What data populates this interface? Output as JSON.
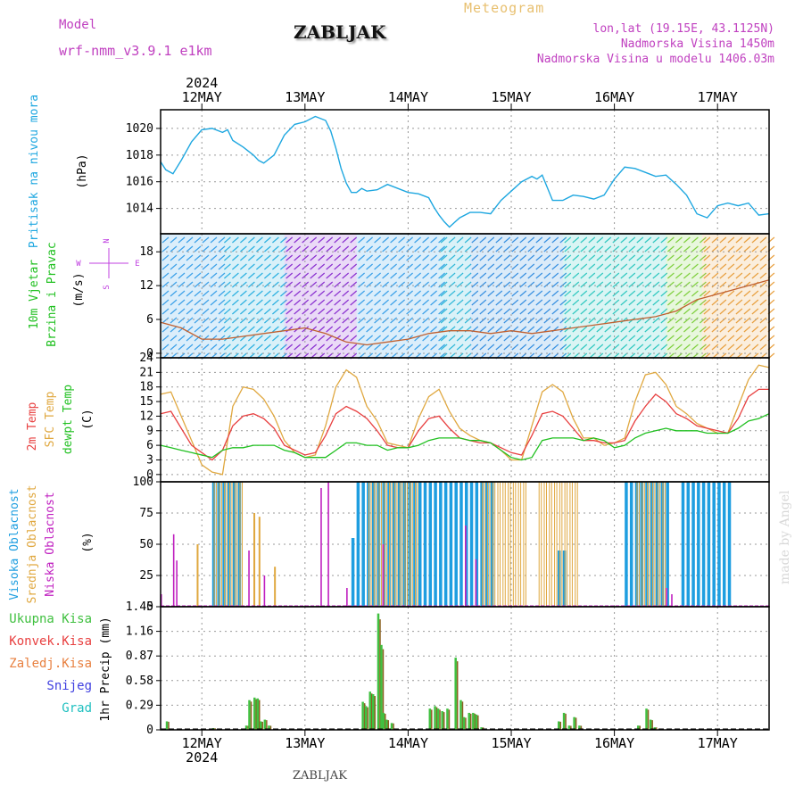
{
  "header": {
    "model_label": "Model",
    "model_name": "wrf-nmm_v3.9.1  e1km",
    "station": "ZABLJAK",
    "meteogram": "Meteogram",
    "lonlat": "lon,lat (19.15E, 43.1125N)",
    "elevation": "Nadmorska Visina 1450m",
    "model_elevation": "Nadmorska Visina u modelu 1406.03m",
    "year": "2024",
    "footer": "ZABLJAK",
    "watermark": "made by Angel"
  },
  "colors": {
    "pressure": "#1ea7e0",
    "temp2m": "#e84040",
    "sfc": "#e0a840",
    "dew": "#20c020",
    "high": "#1e9ee0",
    "mid": "#e0a840",
    "low": "#c020c0",
    "precip_total": "#40c040",
    "precip_conv": "#e84040",
    "wind_green": "#20c020",
    "compass": "#c040e0"
  },
  "chart_data": [
    {
      "type": "line",
      "panel": "pressure",
      "ylabel_outer": "Pritisak na nivou mora",
      "ylabel_inner": "(hPa)",
      "x_start_day": 11.6,
      "x_end_day": 17.5,
      "dates": [
        "12MAY",
        "13MAY",
        "14MAY",
        "15MAY",
        "16MAY",
        "17MAY"
      ],
      "ylim": [
        1012.1,
        1021.4
      ],
      "yticks": [
        1014,
        1016,
        1018,
        1020
      ],
      "x": [
        11.6,
        11.65,
        11.72,
        11.8,
        11.9,
        12.0,
        12.1,
        12.2,
        12.25,
        12.3,
        12.4,
        12.5,
        12.55,
        12.6,
        12.7,
        12.8,
        12.9,
        13.0,
        13.1,
        13.2,
        13.25,
        13.3,
        13.35,
        13.4,
        13.45,
        13.5,
        13.55,
        13.6,
        13.7,
        13.8,
        13.9,
        14.0,
        14.1,
        14.2,
        14.25,
        14.3,
        14.35,
        14.4,
        14.5,
        14.6,
        14.7,
        14.8,
        14.9,
        15.0,
        15.1,
        15.2,
        15.25,
        15.3,
        15.4,
        15.5,
        15.6,
        15.7,
        15.8,
        15.9,
        16.0,
        16.1,
        16.2,
        16.3,
        16.4,
        16.5,
        16.6,
        16.7,
        16.8,
        16.9,
        17.0,
        17.1,
        17.2,
        17.3,
        17.4,
        17.5
      ],
      "values": [
        1017.5,
        1016.9,
        1016.6,
        1017.6,
        1019.0,
        1019.9,
        1020.0,
        1019.7,
        1019.9,
        1019.1,
        1018.6,
        1018.0,
        1017.6,
        1017.4,
        1018.0,
        1019.5,
        1020.3,
        1020.5,
        1020.9,
        1020.6,
        1019.8,
        1018.5,
        1017.0,
        1015.9,
        1015.2,
        1015.2,
        1015.5,
        1015.3,
        1015.4,
        1015.8,
        1015.5,
        1015.2,
        1015.1,
        1014.8,
        1014.1,
        1013.5,
        1013.0,
        1012.6,
        1013.3,
        1013.7,
        1013.7,
        1013.6,
        1014.6,
        1015.3,
        1016.0,
        1016.4,
        1016.2,
        1016.5,
        1014.6,
        1014.6,
        1015.0,
        1014.9,
        1014.7,
        1015.0,
        1016.2,
        1017.1,
        1017.0,
        1016.7,
        1016.4,
        1016.5,
        1015.8,
        1015.0,
        1013.6,
        1013.3,
        1014.2,
        1014.4,
        1014.2,
        1014.4,
        1013.5,
        1013.6
      ]
    },
    {
      "type": "scatter",
      "panel": "wind",
      "ylabel_outer1": "10m Vjetar",
      "ylabel_outer2": "Brzina i Pravac",
      "ylabel_inner": "(m/s)",
      "ylim": [
        -0.8,
        21.2
      ],
      "yticks": [
        0,
        6,
        12,
        18
      ],
      "x": [
        11.6,
        11.8,
        12.0,
        12.2,
        12.4,
        12.6,
        12.8,
        13.0,
        13.2,
        13.4,
        13.6,
        13.8,
        14.0,
        14.2,
        14.4,
        14.6,
        14.8,
        15.0,
        15.2,
        15.4,
        15.6,
        15.8,
        16.0,
        16.2,
        16.4,
        16.6,
        16.8,
        17.0,
        17.2,
        17.4,
        17.5
      ],
      "speed": [
        5.5,
        4.5,
        2.5,
        2.5,
        3.0,
        3.5,
        4.0,
        4.5,
        3.5,
        2.0,
        1.5,
        2.0,
        2.5,
        3.5,
        4.0,
        4.0,
        3.5,
        4.0,
        3.5,
        4.0,
        4.5,
        5.0,
        5.5,
        6.0,
        6.5,
        7.5,
        9.5,
        10.5,
        11.5,
        12.5,
        13.0
      ],
      "compass": {
        "n": "N",
        "w": "W",
        "e": "E",
        "s": "S"
      }
    },
    {
      "type": "line",
      "panel": "temperature",
      "ylabel_temp2m": "2m Temp",
      "ylabel_sfc": "SFC Temp",
      "ylabel_dew": "dewpt Temp",
      "ylabel_inner": "(C)",
      "ylim": [
        -1.5,
        24
      ],
      "yticks": [
        0,
        3,
        6,
        9,
        12,
        15,
        18,
        21,
        24
      ],
      "x": [
        11.6,
        11.7,
        11.8,
        11.9,
        12.0,
        12.1,
        12.2,
        12.3,
        12.4,
        12.5,
        12.6,
        12.7,
        12.8,
        12.9,
        13.0,
        13.1,
        13.2,
        13.3,
        13.4,
        13.5,
        13.6,
        13.7,
        13.8,
        13.9,
        14.0,
        14.1,
        14.2,
        14.3,
        14.4,
        14.5,
        14.6,
        14.7,
        14.8,
        14.9,
        15.0,
        15.1,
        15.2,
        15.3,
        15.4,
        15.5,
        15.6,
        15.7,
        15.8,
        15.9,
        16.0,
        16.1,
        16.2,
        16.3,
        16.4,
        16.5,
        16.6,
        16.7,
        16.8,
        16.9,
        17.0,
        17.1,
        17.2,
        17.3,
        17.4,
        17.5
      ],
      "temp2m": [
        12.5,
        13.0,
        9.5,
        6.0,
        4.5,
        3.0,
        5.0,
        10.0,
        12.0,
        12.5,
        11.5,
        9.5,
        6.0,
        5.0,
        4.0,
        4.5,
        8.0,
        12.5,
        14.0,
        13.0,
        11.5,
        9.0,
        6.0,
        5.5,
        5.5,
        9.0,
        11.5,
        12.0,
        9.5,
        7.5,
        7.0,
        6.5,
        6.5,
        5.5,
        4.5,
        4.0,
        8.0,
        12.5,
        13.0,
        12.0,
        9.5,
        7.0,
        7.0,
        6.5,
        6.5,
        7.0,
        11.0,
        14.0,
        16.5,
        15.0,
        12.5,
        11.5,
        10.0,
        9.5,
        9.0,
        8.5,
        11.5,
        16.0,
        17.5,
        17.5
      ],
      "sfc_temp": [
        16.5,
        17.0,
        12.0,
        7.0,
        2.0,
        0.5,
        0.0,
        14.0,
        18.0,
        17.5,
        15.5,
        12.0,
        7.0,
        4.5,
        3.5,
        4.0,
        10.0,
        18.0,
        21.5,
        20.0,
        14.0,
        11.0,
        6.5,
        6.0,
        5.5,
        11.5,
        16.0,
        17.5,
        13.0,
        9.5,
        8.0,
        7.0,
        6.5,
        5.0,
        3.0,
        3.0,
        10.0,
        17.0,
        18.5,
        17.0,
        11.5,
        7.5,
        7.5,
        6.0,
        6.5,
        7.5,
        15.0,
        20.5,
        21.0,
        18.5,
        14.0,
        12.5,
        10.5,
        9.5,
        8.5,
        8.5,
        14.0,
        19.5,
        22.5,
        22.0
      ],
      "dewpt": [
        6.0,
        5.5,
        5.0,
        4.5,
        4.0,
        3.5,
        5.0,
        5.5,
        5.5,
        6.0,
        6.0,
        6.0,
        5.0,
        4.5,
        3.5,
        3.5,
        3.5,
        5.0,
        6.5,
        6.5,
        6.0,
        6.0,
        5.0,
        5.5,
        5.5,
        6.0,
        7.0,
        7.5,
        7.5,
        7.5,
        7.0,
        7.0,
        6.5,
        5.0,
        3.5,
        3.0,
        3.5,
        7.0,
        7.5,
        7.5,
        7.5,
        7.0,
        7.5,
        7.0,
        5.5,
        6.0,
        7.5,
        8.5,
        9.0,
        9.5,
        9.0,
        9.0,
        9.0,
        8.5,
        8.5,
        8.5,
        9.5,
        11.0,
        11.5,
        12.5
      ]
    },
    {
      "type": "bar",
      "panel": "clouds",
      "ylabel_high": "Visoka Oblacnost",
      "ylabel_mid": "Srednja Oblacnost",
      "ylabel_low": "Niska Oblacnost",
      "ylabel_inner": "(%)",
      "ylim": [
        0,
        100
      ],
      "yticks": [
        0,
        25,
        50,
        75,
        100
      ],
      "high_segments": [
        {
          "from": 12.1,
          "to": 12.4,
          "value": 100
        },
        {
          "from": 13.45,
          "to": 13.5,
          "value": 55
        },
        {
          "from": 13.5,
          "to": 14.85,
          "value": 100
        },
        {
          "from": 15.45,
          "to": 15.55,
          "value": 45
        },
        {
          "from": 16.1,
          "to": 16.55,
          "value": 100
        },
        {
          "from": 16.65,
          "to": 17.15,
          "value": 100
        }
      ],
      "mid_segments": [
        {
          "from": 12.1,
          "to": 12.4,
          "value": 100
        },
        {
          "from": 13.6,
          "to": 14.1,
          "value": 100
        },
        {
          "from": 14.7,
          "to": 15.15,
          "value": 100
        },
        {
          "from": 15.25,
          "to": 15.65,
          "value": 100
        },
        {
          "from": 16.2,
          "to": 16.5,
          "value": 100
        }
      ],
      "mid_spikes": [
        {
          "x": 12.5,
          "v": 75
        },
        {
          "x": 12.55,
          "v": 72
        },
        {
          "x": 12.7,
          "v": 32
        },
        {
          "x": 11.95,
          "v": 50
        },
        {
          "x": 12.5,
          "v": 70
        }
      ],
      "low_spikes": [
        {
          "x": 11.6,
          "v": 10
        },
        {
          "x": 11.72,
          "v": 58
        },
        {
          "x": 11.75,
          "v": 37
        },
        {
          "x": 12.45,
          "v": 45
        },
        {
          "x": 12.6,
          "v": 25
        },
        {
          "x": 13.15,
          "v": 95
        },
        {
          "x": 13.22,
          "v": 100
        },
        {
          "x": 13.4,
          "v": 15
        },
        {
          "x": 13.75,
          "v": 50
        },
        {
          "x": 14.55,
          "v": 65
        },
        {
          "x": 14.65,
          "v": 38
        },
        {
          "x": 16.5,
          "v": 15
        },
        {
          "x": 16.55,
          "v": 10
        }
      ]
    },
    {
      "type": "bar",
      "panel": "precip",
      "labels": {
        "total": "Ukupna Kisa",
        "conv": "Konvek.Kisa",
        "frozen": "Zaledj.Kisa",
        "snow": "Snijeg",
        "graupel": "Grad"
      },
      "ylabel_inner": "1hr Precip (mm)",
      "ylim": [
        0,
        1.45
      ],
      "yticks": [
        0,
        0.29,
        0.58,
        0.87,
        1.16,
        1.45
      ],
      "x": [
        11.65,
        12.1,
        12.42,
        12.45,
        12.5,
        12.53,
        12.56,
        12.6,
        12.64,
        13.55,
        13.58,
        13.62,
        13.65,
        13.7,
        13.73,
        13.75,
        13.78,
        13.83,
        14.2,
        14.25,
        14.28,
        14.32,
        14.37,
        14.45,
        14.5,
        14.53,
        14.58,
        14.62,
        14.65,
        14.7,
        15.45,
        15.5,
        15.55,
        15.6,
        15.65,
        16.22,
        16.3,
        16.34,
        16.38
      ],
      "values": [
        0.1,
        0.02,
        0.05,
        0.35,
        0.38,
        0.37,
        0.1,
        0.12,
        0.05,
        0.33,
        0.28,
        0.45,
        0.42,
        1.37,
        1.0,
        0.2,
        0.12,
        0.08,
        0.25,
        0.28,
        0.25,
        0.22,
        0.25,
        0.85,
        0.35,
        0.15,
        0.2,
        0.2,
        0.18,
        0.03,
        0.1,
        0.2,
        0.05,
        0.15,
        0.05,
        0.05,
        0.25,
        0.12,
        0.03
      ]
    }
  ]
}
